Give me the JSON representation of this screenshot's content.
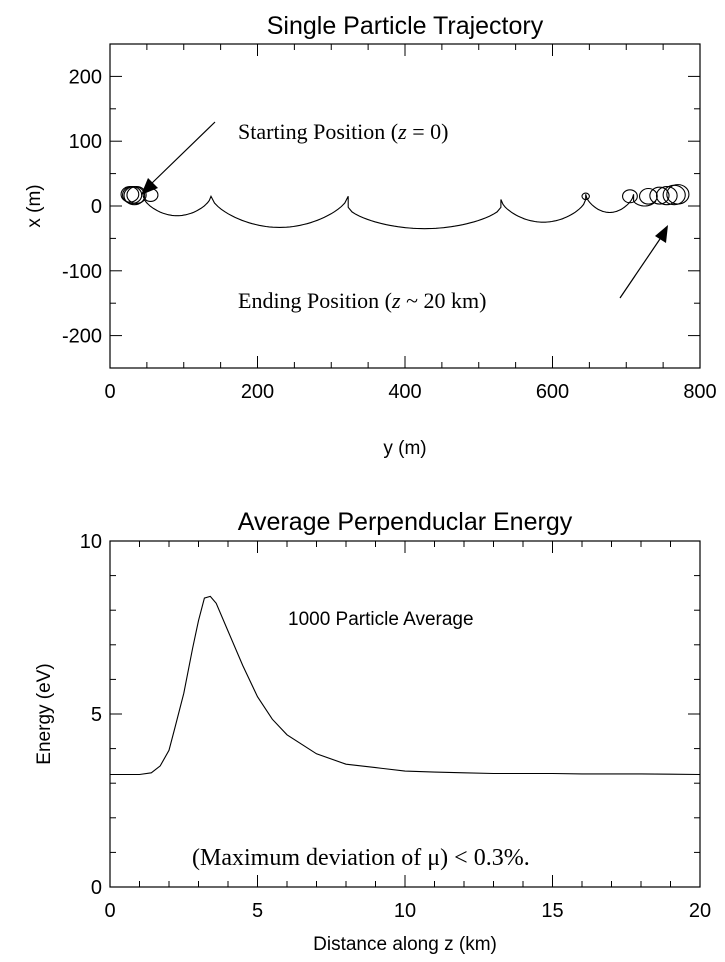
{
  "chart_data": [
    {
      "type": "line",
      "title": "Single Particle Trajectory",
      "xlabel": "y (m)",
      "ylabel": "x (m)",
      "xlim": [
        0,
        800
      ],
      "ylim": [
        -250,
        250
      ],
      "xticks": [
        {
          "value": 0,
          "label": "0"
        },
        {
          "value": 200,
          "label": "200"
        },
        {
          "value": 400,
          "label": "400"
        },
        {
          "value": 600,
          "label": "600"
        },
        {
          "value": 800,
          "label": "800"
        }
      ],
      "yticks": [
        {
          "value": 200,
          "label": "200"
        },
        {
          "value": 100,
          "label": "100"
        },
        {
          "value": 0,
          "label": "0"
        },
        {
          "value": -100,
          "label": "-100"
        },
        {
          "value": -200,
          "label": "-200"
        }
      ],
      "annotations": {
        "start": {
          "text_prefix": "Starting Position (",
          "text_var": "z",
          "text_suffix": " = 0)",
          "point": [
            32,
            18
          ]
        },
        "end": {
          "text_prefix": "Ending Position (",
          "text_var": "z",
          "text_suffix": " ~ 20 km)",
          "point": [
            768,
            16
          ]
        }
      },
      "arcs": [
        {
          "y1": 45,
          "y2": 137,
          "cusp_x": 15,
          "min_x": -15
        },
        {
          "y1": 137,
          "y2": 323,
          "cusp_x": 15,
          "min_x": -33
        },
        {
          "y1": 323,
          "y2": 530,
          "cusp_x": -2,
          "min_x": -35
        },
        {
          "y1": 530,
          "y2": 645,
          "cusp_x": 10,
          "min_x": -25
        },
        {
          "y1": 645,
          "y2": 710,
          "cusp_x": 18,
          "min_x": -10
        },
        {
          "y1": 710,
          "y2": 740,
          "cusp_x": 8,
          "min_x": 0
        }
      ],
      "loops": [
        {
          "cy": 27,
          "cx": 18,
          "r": 12
        },
        {
          "cy": 30,
          "cx": 17,
          "r": 13
        },
        {
          "cy": 33,
          "cx": 16,
          "r": 14
        },
        {
          "cy": 36,
          "cx": 17,
          "r": 13
        },
        {
          "cy": 55,
          "cx": 17,
          "r": 10
        },
        {
          "cy": 645,
          "cx": 15,
          "r": 5
        },
        {
          "cy": 705,
          "cx": 15,
          "r": 10
        },
        {
          "cy": 730,
          "cx": 15,
          "r": 12
        },
        {
          "cy": 745,
          "cx": 16,
          "r": 13
        },
        {
          "cy": 755,
          "cx": 16,
          "r": 14
        },
        {
          "cy": 765,
          "cx": 17,
          "r": 15
        },
        {
          "cy": 770,
          "cx": 18,
          "r": 15
        }
      ]
    },
    {
      "type": "line",
      "title": "Average Perpenduclar Energy",
      "xlabel": "Distance along z (km)",
      "ylabel": "Energy (eV)",
      "xlim": [
        0,
        20
      ],
      "ylim": [
        0,
        10
      ],
      "xticks": [
        {
          "value": 0,
          "label": "0"
        },
        {
          "value": 5,
          "label": "5"
        },
        {
          "value": 10,
          "label": "10"
        },
        {
          "value": 15,
          "label": "15"
        },
        {
          "value": 20,
          "label": "20"
        }
      ],
      "yticks": [
        {
          "value": 10,
          "label": "10"
        },
        {
          "value": 5,
          "label": "5"
        },
        {
          "value": 0,
          "label": "0"
        }
      ],
      "annotations": {
        "average": {
          "text": "1000 Particle Average"
        },
        "deviation": {
          "text_prefix": "(Maximum deviation of ",
          "text_symbol": "μ",
          "text_suffix": ") < 0.3%."
        }
      },
      "series": [
        {
          "x": [
            0,
            0.5,
            1.0,
            1.4,
            1.7,
            2.0,
            2.2,
            2.5,
            2.8,
            3.0,
            3.2,
            3.4,
            3.6,
            4.0,
            4.5,
            5.0,
            5.5,
            6.0,
            7.0,
            8.0,
            9.0,
            10.0,
            11.0,
            12.0,
            13.0,
            14.0,
            15.0,
            16.0,
            17.0,
            18.0,
            19.0,
            20.0
          ],
          "y": [
            3.25,
            3.25,
            3.25,
            3.3,
            3.5,
            3.95,
            4.6,
            5.6,
            6.9,
            7.7,
            8.35,
            8.4,
            8.2,
            7.4,
            6.4,
            5.5,
            4.85,
            4.4,
            3.85,
            3.55,
            3.45,
            3.35,
            3.32,
            3.3,
            3.28,
            3.28,
            3.28,
            3.27,
            3.27,
            3.27,
            3.26,
            3.25
          ]
        }
      ]
    }
  ]
}
